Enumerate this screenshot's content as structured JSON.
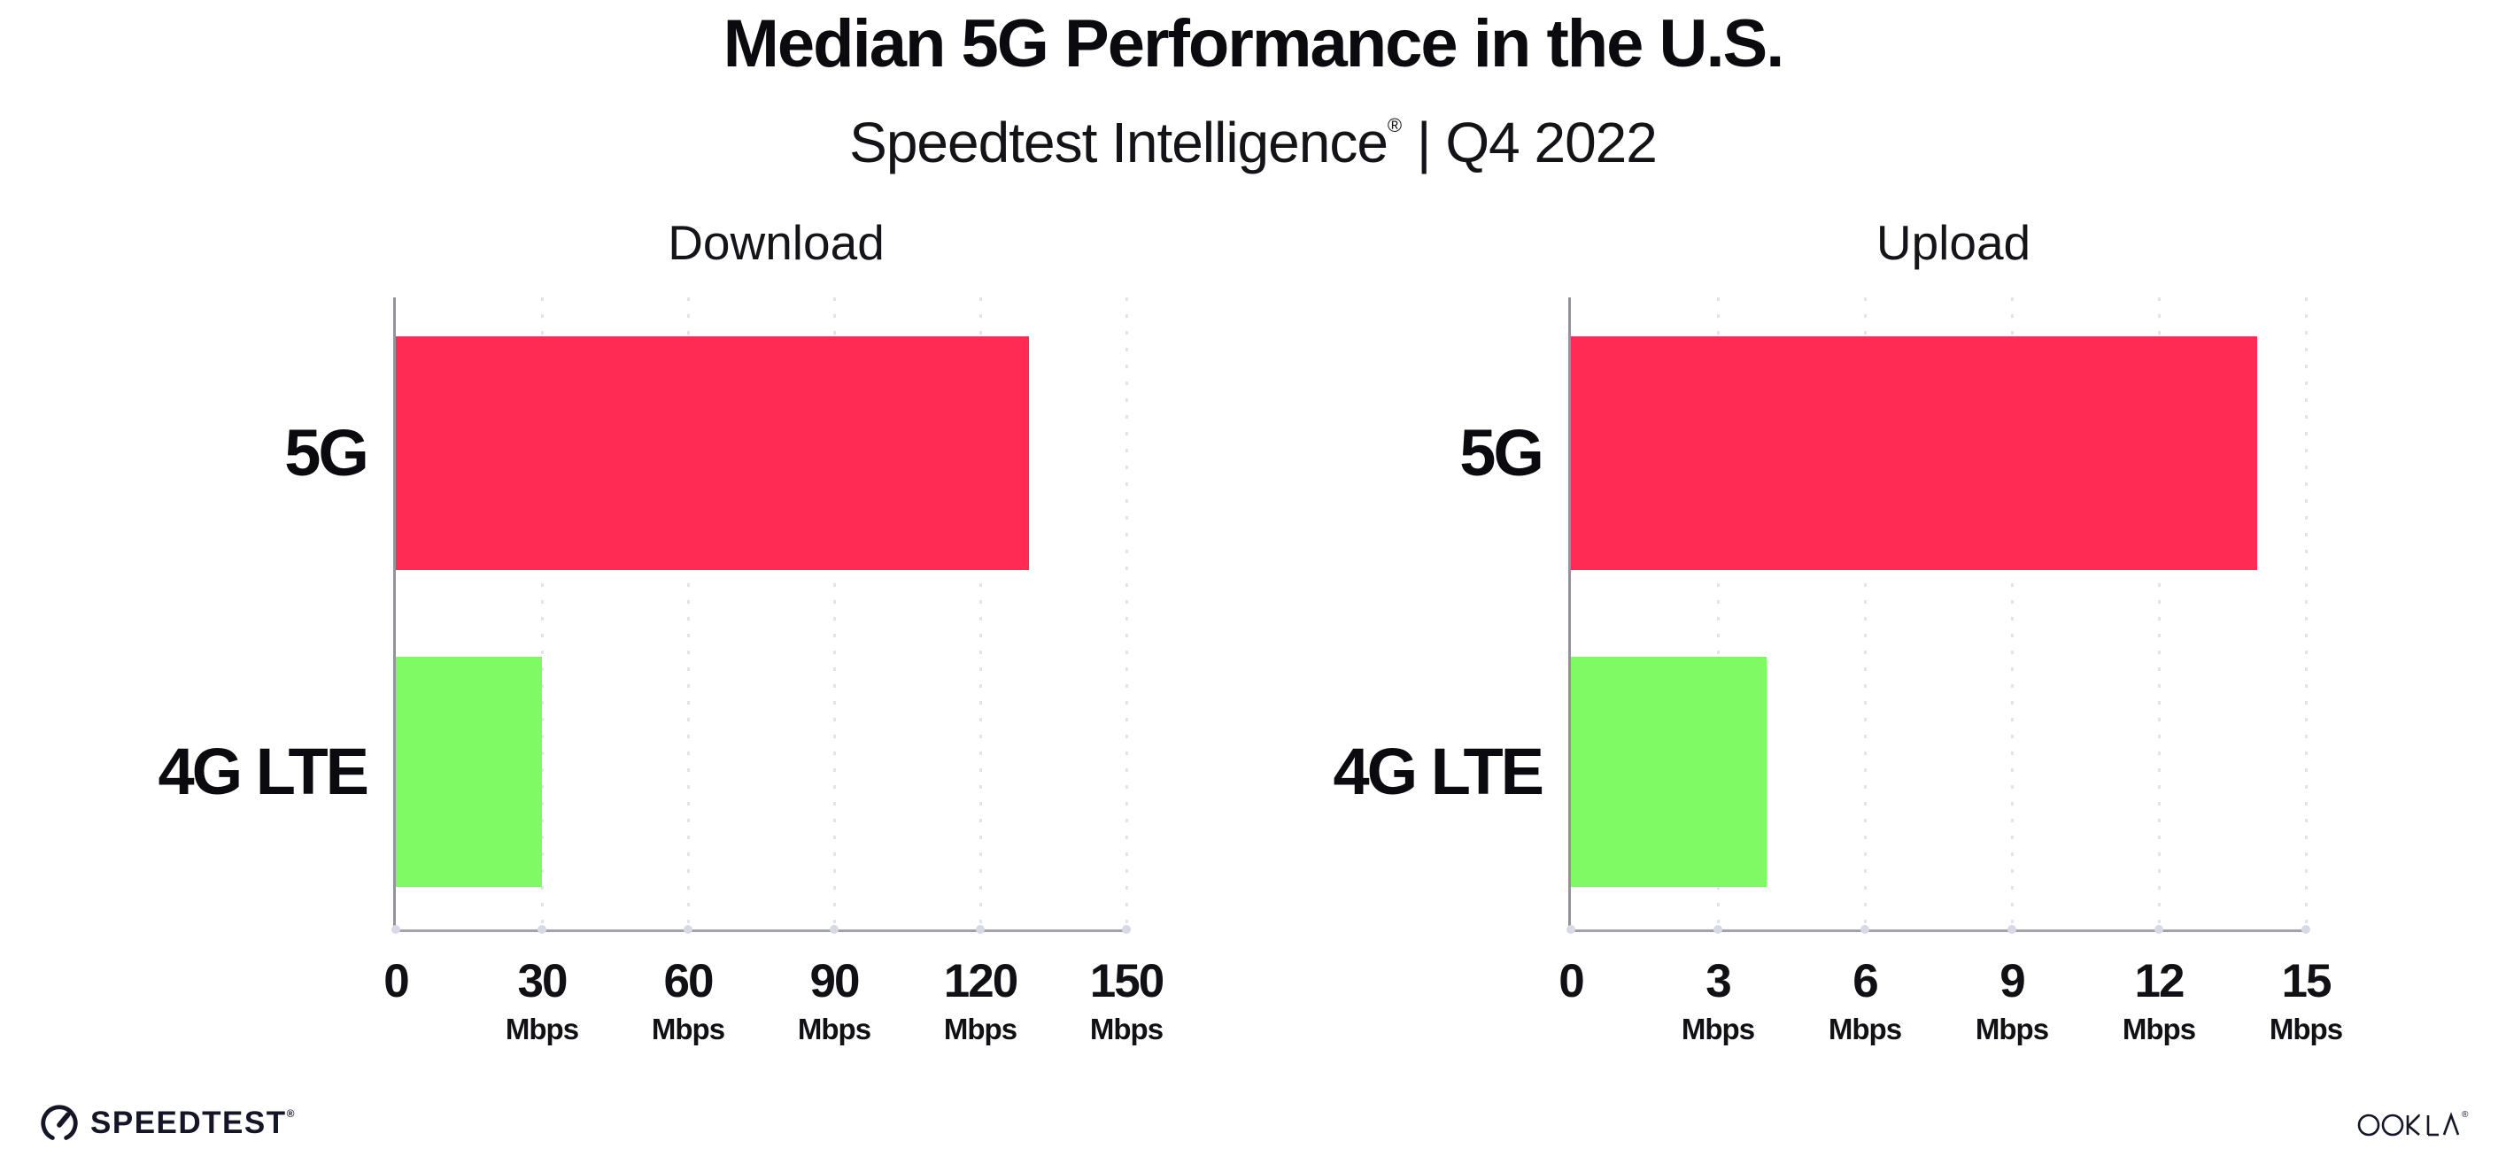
{
  "header": {
    "title": "Median 5G Performance in the U.S.",
    "subtitle_brand": "Speedtest Intelligence",
    "subtitle_mark": "®",
    "subtitle_rest": "| Q4 2022"
  },
  "footer": {
    "speedtest_label": "SPEEDTEST",
    "speedtest_mark": "®",
    "ookla_label": "OOKLA",
    "ookla_mark": "®"
  },
  "colors": {
    "bar_5g": "#FF2B55",
    "bar_4g_lte": "#7FFA64",
    "axis": "#9b9ba3",
    "gridline": "#e2e3ee",
    "tick_dot": "#d7d9e6",
    "text": "#0f0f14",
    "logo": "#141526"
  },
  "chart_data": [
    {
      "type": "bar",
      "orientation": "horizontal",
      "title": "Download",
      "categories": [
        "5G",
        "4G LTE"
      ],
      "values": [
        130,
        30
      ],
      "unit": "Mbps",
      "xlim": [
        0,
        150
      ],
      "xticks": [
        0,
        30,
        60,
        90,
        120,
        150
      ],
      "bar_colors": [
        "#FF2B55",
        "#7FFA64"
      ],
      "grid": "dotted-vertical",
      "legend": "none"
    },
    {
      "type": "bar",
      "orientation": "horizontal",
      "title": "Upload",
      "categories": [
        "5G",
        "4G LTE"
      ],
      "values": [
        14,
        4
      ],
      "unit": "Mbps",
      "xlim": [
        0,
        15
      ],
      "xticks": [
        0,
        3,
        6,
        9,
        12,
        15
      ],
      "bar_colors": [
        "#FF2B55",
        "#7FFA64"
      ],
      "grid": "dotted-vertical",
      "legend": "none"
    }
  ]
}
